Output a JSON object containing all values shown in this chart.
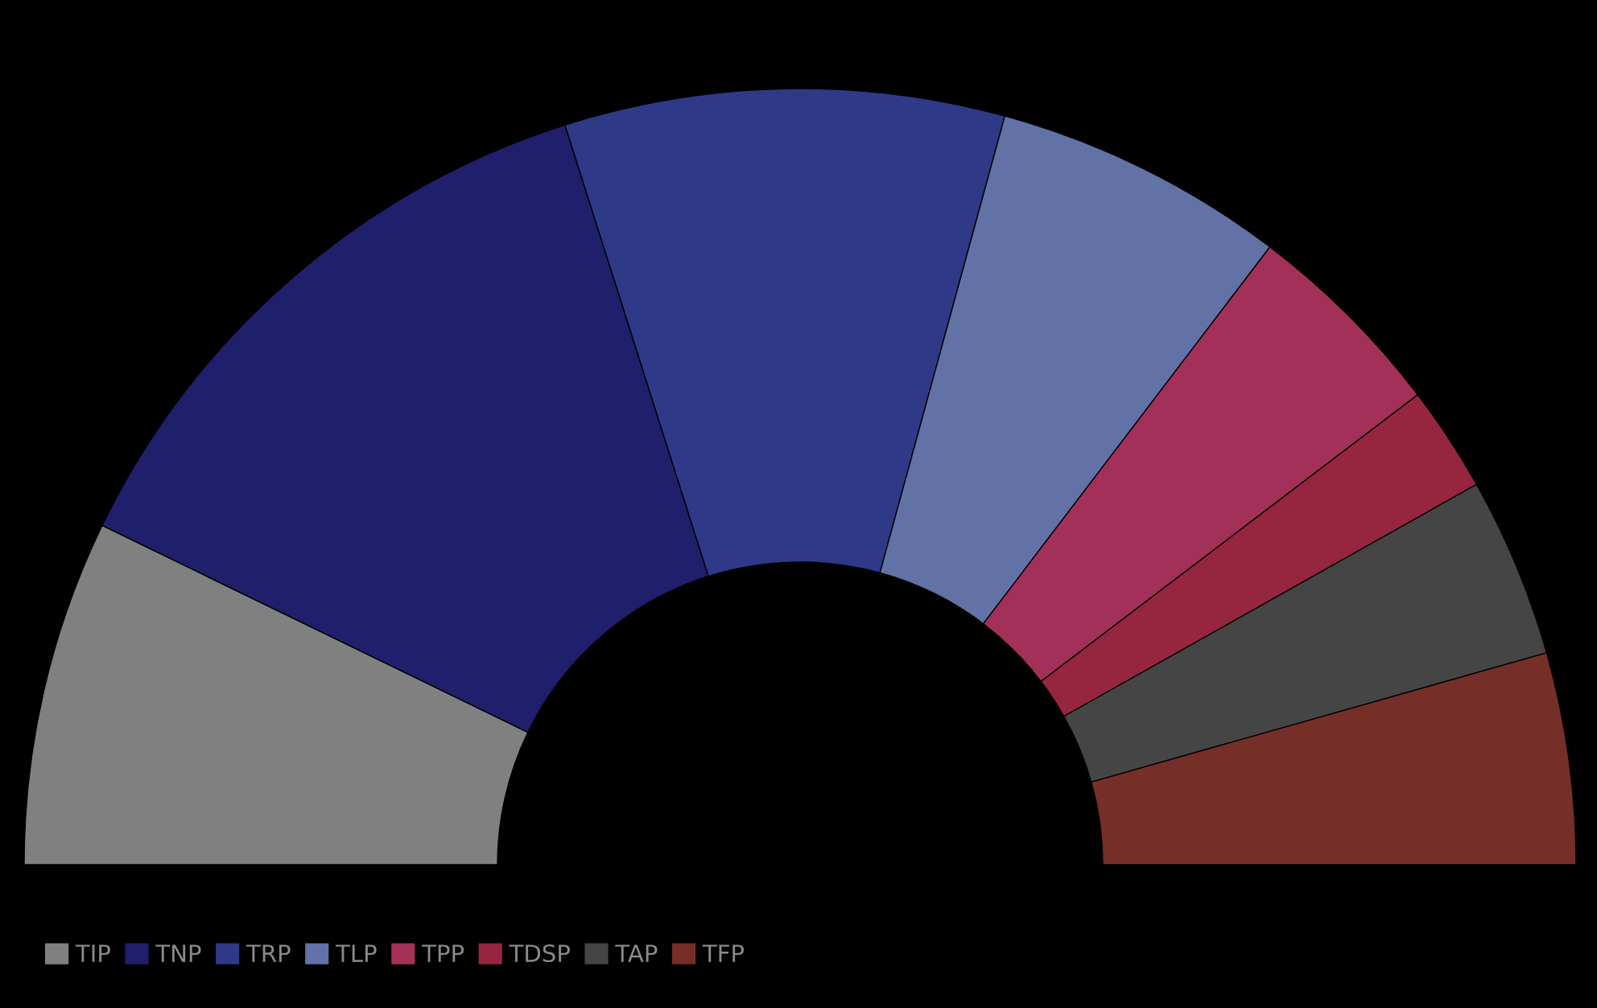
{
  "chart_data": {
    "type": "donut",
    "categories": [
      "TIP",
      "TNP",
      "TRP",
      "TLP",
      "TPP",
      "TDSP",
      "TAP",
      "TFP"
    ],
    "values": [
      14.4,
      25.8,
      18.3,
      12.2,
      8.6,
      4.4,
      7.5,
      8.8
    ],
    "colors": [
      "#808080",
      "#1f1f6b",
      "#2e3a88",
      "#6272a6",
      "#a33058",
      "#962540",
      "#454545",
      "#752f28"
    ],
    "legend": "bottom left"
  }
}
